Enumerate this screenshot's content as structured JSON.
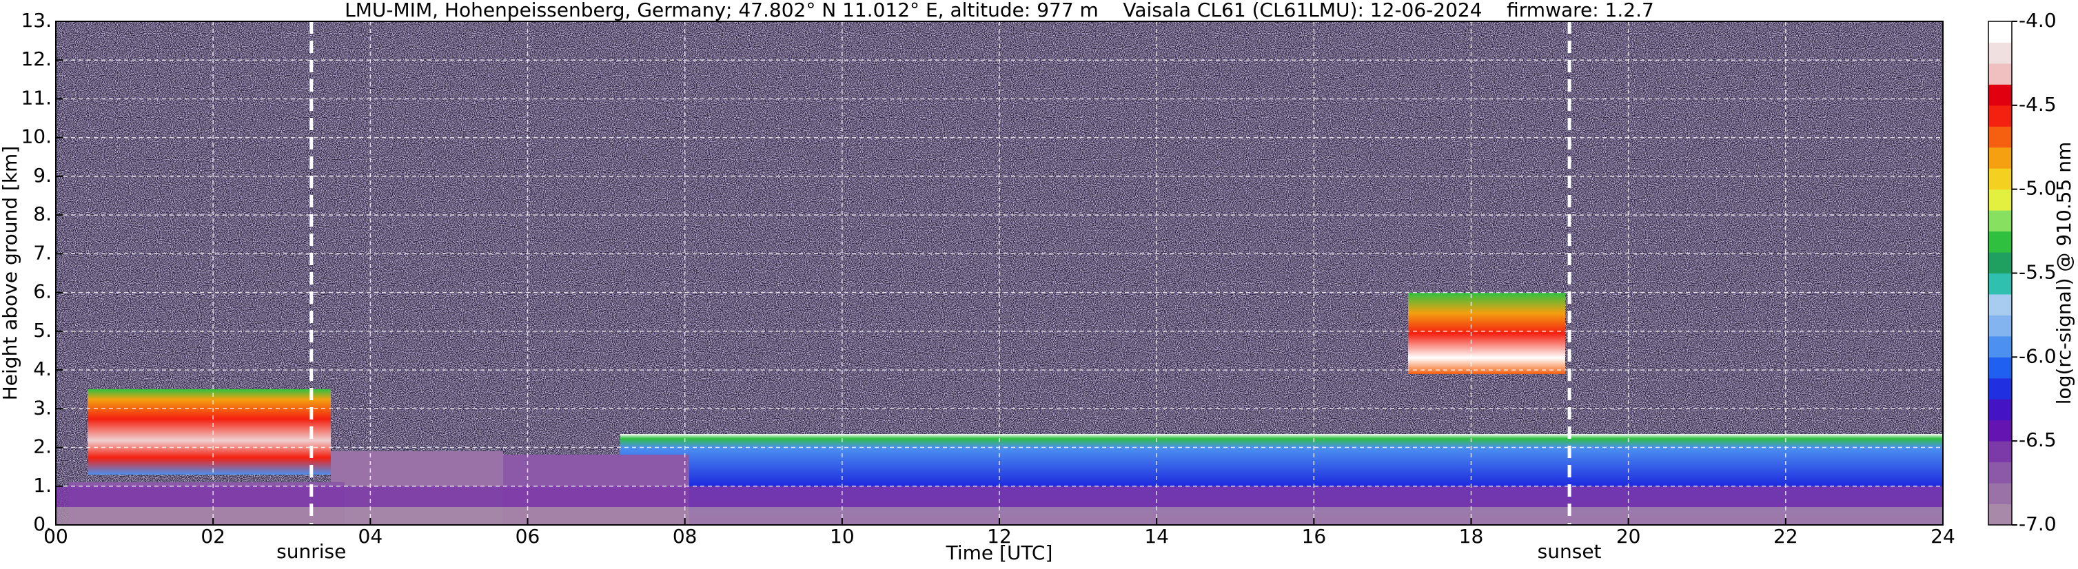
{
  "chart_data": {
    "type": "heatmap",
    "title": "LMU-MIM, Hohenpeissenberg, Germany; 47.802° N 11.012° E, altitude: 977 m    Vaisala CL61 (CL61LMU): 12-06-2024    firmware: 1.2.7",
    "x_label": "Time [UTC]",
    "y_label": "Height above ground [km]",
    "colorbar_label": "log(rc-signal) @ 910.55 nm",
    "xlim": [
      0,
      24
    ],
    "xticks": [
      {
        "value": 0,
        "label": "00"
      },
      {
        "value": 2,
        "label": "02"
      },
      {
        "value": 4,
        "label": "04"
      },
      {
        "value": 6,
        "label": "06"
      },
      {
        "value": 8,
        "label": "08"
      },
      10,
      12,
      14,
      16,
      18,
      20,
      22,
      24
    ],
    "ylim": [
      0,
      13
    ],
    "yticks": [
      {
        "value": 0,
        "label": "0."
      },
      {
        "value": 1,
        "label": "1."
      },
      {
        "value": 2,
        "label": "2."
      },
      {
        "value": 3,
        "label": "3."
      },
      {
        "value": 4,
        "label": "4."
      },
      {
        "value": 5,
        "label": "5."
      },
      {
        "value": 6,
        "label": "6."
      },
      {
        "value": 7,
        "label": "7."
      },
      {
        "value": 8,
        "label": "8."
      },
      {
        "value": 9,
        "label": "9."
      },
      {
        "value": 10,
        "label": "10."
      },
      {
        "value": 11,
        "label": "11."
      },
      {
        "value": 12,
        "label": "12."
      },
      {
        "value": 13,
        "label": "13."
      }
    ],
    "clim": [
      -7.0,
      -4.0
    ],
    "cticks": [
      {
        "value": -7,
        "label": "-7.0"
      },
      -6.5,
      {
        "value": -6,
        "label": "-6.0"
      },
      -5.5,
      {
        "value": -5,
        "label": "-5.0"
      },
      -4.5,
      {
        "value": -4,
        "label": "-4.0"
      }
    ],
    "colormap": [
      "#a88aa8",
      "#9a72a8",
      "#8c58a8",
      "#7c3aa8",
      "#6414b0",
      "#4414c4",
      "#2030e0",
      "#2060f0",
      "#4c90f0",
      "#84b4f0",
      "#a8ccf0",
      "#30c0b0",
      "#20a060",
      "#30c040",
      "#88e060",
      "#e4f040",
      "#f4d020",
      "#f4a010",
      "#f46010",
      "#f42010",
      "#e00010",
      "#f0c0c0",
      "#f0e0e0",
      "#ffffff"
    ],
    "grid": true,
    "annotations": [
      {
        "text": "sunrise",
        "x": 3.25
      },
      {
        "text": "sunset",
        "x": 19.25
      }
    ]
  }
}
